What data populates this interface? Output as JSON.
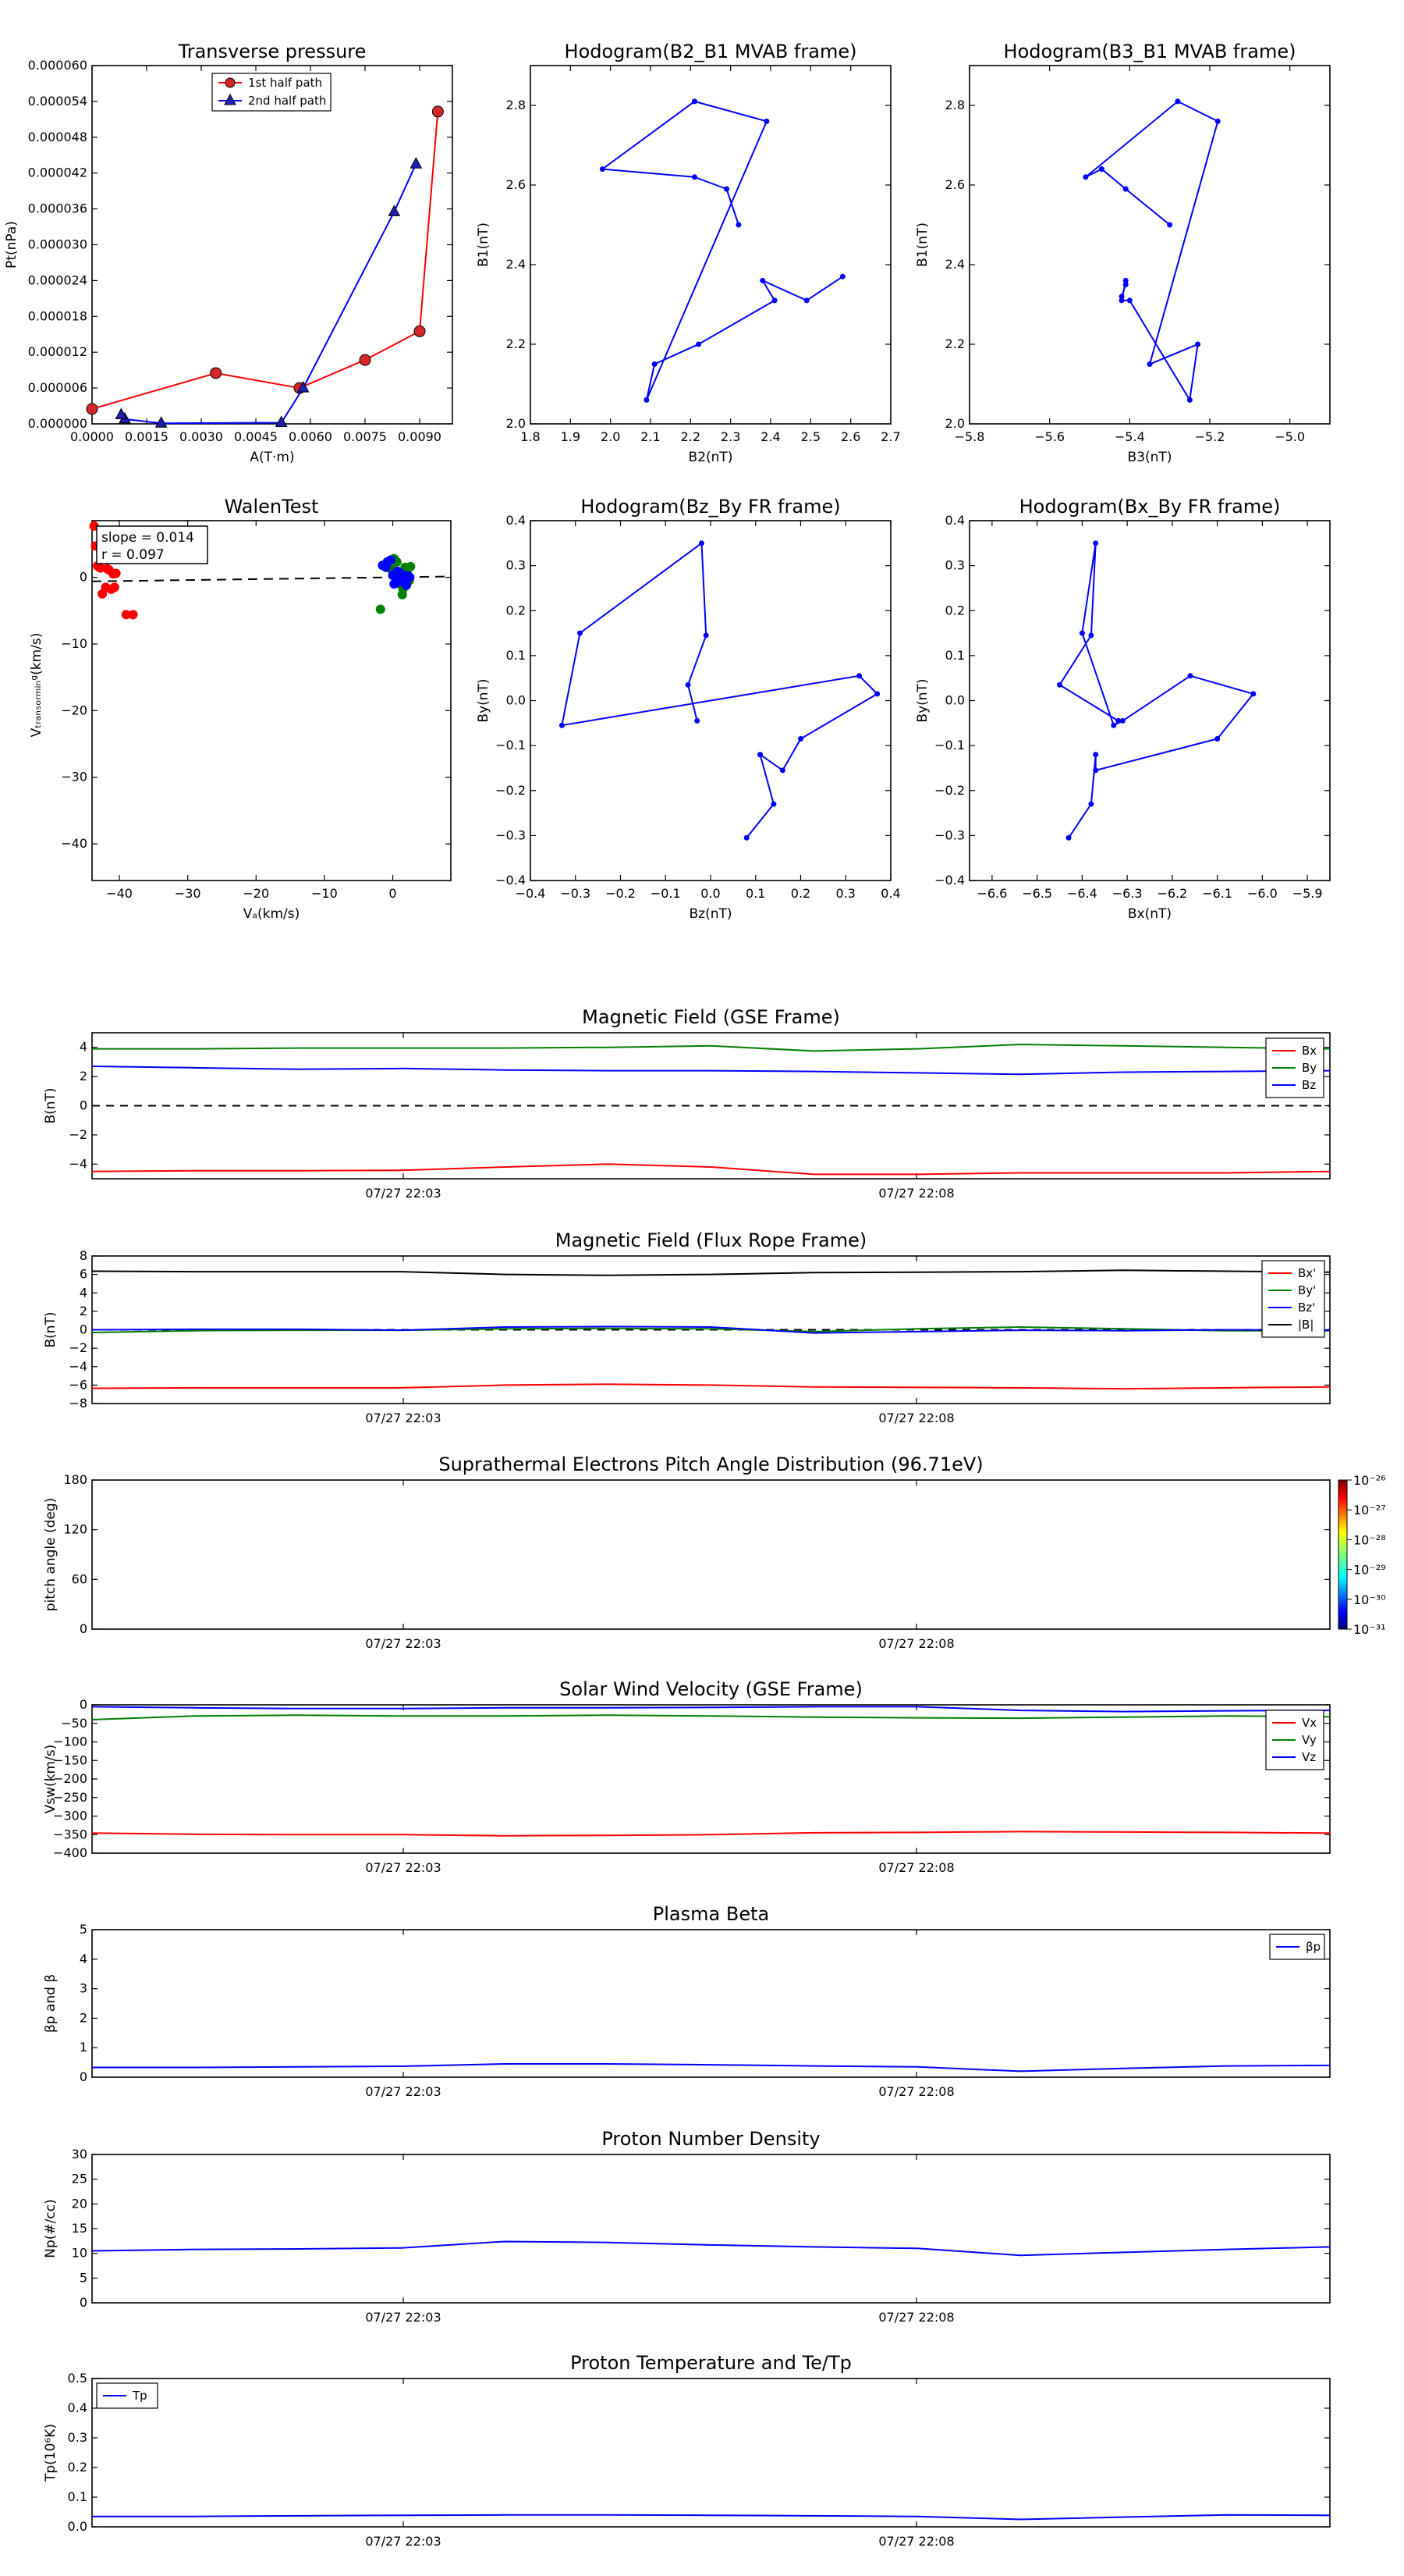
{
  "colors": {
    "red": "#ff0000",
    "green": "#008000",
    "blue": "#0000ff",
    "black": "#000000",
    "marker_red": "#d62728",
    "marker_blue": "#1f1fb4"
  },
  "panels": {
    "tp": {
      "title": "Transverse pressure",
      "xlabel": "A(T·m)",
      "ylabel": "Pt(nPa)",
      "legend": [
        "1st half path",
        "2nd half path"
      ]
    },
    "h1": {
      "title": "Hodogram(B2_B1 MVAB frame)",
      "xlabel": "B2(nT)",
      "ylabel": "B1(nT)"
    },
    "h2": {
      "title": "Hodogram(B3_B1 MVAB frame)",
      "xlabel": "B3(nT)",
      "ylabel": "B1(nT)"
    },
    "wt": {
      "title": "WalenTest",
      "xlabel": "Vₐ(km/s)",
      "ylabel": "Vₜᵣₐₙₛₒᵣₘᵢₙᵍ(km/s)",
      "slope_text": "slope = 0.014",
      "r_text": "r = 0.097"
    },
    "h3": {
      "title": "Hodogram(Bz_By FR frame)",
      "xlabel": "Bz(nT)",
      "ylabel": "By(nT)"
    },
    "h4": {
      "title": "Hodogram(Bx_By FR frame)",
      "xlabel": "Bx(nT)",
      "ylabel": "By(nT)"
    },
    "ts1": {
      "title": "Magnetic Field (GSE Frame)",
      "ylabel": "B(nT)",
      "legend": [
        "Bx",
        "By",
        "Bz"
      ]
    },
    "ts2": {
      "title": "Magnetic Field (Flux Rope Frame)",
      "ylabel": "B(nT)",
      "legend": [
        "Bx'",
        "By'",
        "Bz'",
        "|B|"
      ]
    },
    "ts3": {
      "title": "Suprathermal Electrons Pitch Angle Distribution (96.71eV)",
      "ylabel": "pitch angle (deg)",
      "colorbar_ticks": [
        "10⁻²⁶",
        "10⁻²⁷",
        "10⁻²⁸",
        "10⁻²⁹",
        "10⁻³⁰",
        "10⁻³¹"
      ]
    },
    "ts4": {
      "title": "Solar Wind Velocity (GSE Frame)",
      "ylabel": "Vsw(km/s)",
      "legend": [
        "Vx",
        "Vy",
        "Vz"
      ]
    },
    "ts5": {
      "title": "Plasma Beta",
      "ylabel": "βp and β",
      "legend": [
        "βp"
      ]
    },
    "ts6": {
      "title": "Proton Number Density",
      "ylabel": "Np(#/cc)"
    },
    "ts7": {
      "title": "Proton Temperature and Te/Tp",
      "ylabel": "Tp(10⁶K)",
      "legend": [
        "Tp"
      ]
    },
    "time_ticks": [
      "07/27 22:03",
      "07/27 22:08"
    ]
  },
  "chart_data": [
    {
      "id": "tp",
      "type": "line",
      "x_ticks": [
        "0.0000",
        "0.0015",
        "0.0030",
        "0.0045",
        "0.0060",
        "0.0075",
        "0.0090"
      ],
      "y_ticks": [
        "0.000000",
        "0.000006",
        "0.000012",
        "0.000018",
        "0.000024",
        "0.000030",
        "0.000036",
        "0.000042",
        "0.000048",
        "0.000054",
        "0.000060"
      ],
      "xlim": [
        0,
        0.0099
      ],
      "ylim": [
        0,
        6e-05
      ],
      "series": [
        {
          "name": "1st half path",
          "color": "#ff0000",
          "marker": "circle",
          "x": [
            0,
            0.0034,
            0.0057,
            0.0075,
            0.009,
            0.0095
          ],
          "y": [
            2.5e-06,
            8.5e-06,
            6e-06,
            1.07e-05,
            1.55e-05,
            5.23e-05
          ]
        },
        {
          "name": "2nd half path",
          "color": "#0000ff",
          "marker": "triangle",
          "x": [
            0.0089,
            0.0083,
            0.0058,
            0.0052,
            0.0019,
            0.0009,
            0.0008
          ],
          "y": [
            4.35e-05,
            3.55e-05,
            6e-06,
            2e-07,
            1e-07,
            8e-07,
            1.5e-06
          ]
        }
      ]
    },
    {
      "id": "h1",
      "type": "line",
      "x_ticks": [
        "1.8",
        "1.9",
        "2.0",
        "2.1",
        "2.2",
        "2.3",
        "2.4",
        "2.5",
        "2.6",
        "2.7"
      ],
      "y_ticks": [
        "2.0",
        "2.2",
        "2.4",
        "2.6",
        "2.8"
      ],
      "xlim": [
        1.8,
        2.7
      ],
      "ylim": [
        2.0,
        2.9
      ],
      "x": [
        2.32,
        2.29,
        2.21,
        1.98,
        2.21,
        2.39,
        2.09,
        2.11,
        2.22,
        2.41,
        2.38,
        2.49,
        2.58
      ],
      "y": [
        2.5,
        2.59,
        2.62,
        2.64,
        2.81,
        2.76,
        2.06,
        2.15,
        2.2,
        2.31,
        2.36,
        2.31,
        2.37
      ]
    },
    {
      "id": "h2",
      "type": "line",
      "x_ticks": [
        "−5.8",
        "−5.6",
        "−5.4",
        "−5.2",
        "−5.0"
      ],
      "y_ticks": [
        "2.0",
        "2.2",
        "2.4",
        "2.6",
        "2.8"
      ],
      "xlim": [
        -5.8,
        -4.9
      ],
      "ylim": [
        2.0,
        2.9
      ],
      "x": [
        -5.3,
        -5.41,
        -5.47,
        -5.51,
        -5.28,
        -5.18,
        -5.35,
        -5.23,
        -5.25,
        -5.4,
        -5.42,
        -5.41,
        -5.41,
        -5.42
      ],
      "y": [
        2.5,
        2.59,
        2.64,
        2.62,
        2.81,
        2.76,
        2.15,
        2.2,
        2.06,
        2.31,
        2.31,
        2.36,
        2.35,
        2.32
      ]
    },
    {
      "id": "wt",
      "type": "scatter",
      "x_ticks": [
        "−40",
        "−30",
        "−20",
        "−10",
        "0"
      ],
      "y_ticks": [
        "−40",
        "−30",
        "−20",
        "−10",
        "0"
      ],
      "xlim": [
        -44,
        8.5
      ],
      "ylim": [
        -45.5,
        8.5
      ],
      "series": [
        {
          "color": "#ff0000",
          "x": [
            -43.7,
            -43.5,
            -43.2,
            -42.8,
            -42.5,
            -42.0,
            -41.8,
            -41.5,
            -41.2,
            -40.9,
            -40.7,
            -40.5,
            -39.0,
            -38.0
          ],
          "y": [
            7.7,
            4.7,
            1.7,
            1.4,
            -2.5,
            -1.5,
            1.3,
            1.1,
            -1.8,
            0.5,
            -1.5,
            0.6,
            -5.6,
            -5.6
          ]
        },
        {
          "color": "#008000",
          "x": [
            -1.8,
            -0.5,
            0.2,
            0.6,
            1.2,
            1.4,
            1.8,
            2.2,
            2.6,
            -0.2,
            0.9,
            1.5,
            2.4
          ],
          "y": [
            -4.8,
            2.4,
            2.8,
            2.3,
            -0.3,
            -2.6,
            1.5,
            0.4,
            1.6,
            1.2,
            -0.9,
            -1.7,
            -0.5
          ]
        },
        {
          "color": "#0000ff",
          "x": [
            -1.5,
            -0.8,
            -0.3,
            0.0,
            0.3,
            0.5,
            0.8,
            1.0,
            1.3,
            1.6,
            2.0,
            2.5,
            -1.0,
            0.2,
            0.7,
            1.1,
            1.8,
            2.2
          ],
          "y": [
            1.8,
            2.3,
            2.6,
            0.3,
            0.5,
            -0.8,
            -0.2,
            0.7,
            -0.5,
            0.3,
            -1.2,
            0.0,
            1.5,
            -1.0,
            0.9,
            -0.6,
            -0.3,
            0.2
          ]
        }
      ],
      "fit": {
        "slope": 0.014,
        "intercept": 0.0,
        "style": "dashed"
      }
    },
    {
      "id": "h3",
      "type": "line",
      "x_ticks": [
        "−0.4",
        "−0.3",
        "−0.2",
        "−0.1",
        "0.0",
        "0.1",
        "0.2",
        "0.3",
        "0.4"
      ],
      "y_ticks": [
        "−0.4",
        "−0.3",
        "−0.2",
        "−0.1",
        "0.0",
        "0.1",
        "0.2",
        "0.3",
        "0.4"
      ],
      "xlim": [
        -0.4,
        0.4
      ],
      "ylim": [
        -0.4,
        0.4
      ],
      "x": [
        -0.03,
        -0.05,
        -0.01,
        -0.02,
        -0.29,
        -0.33,
        0.33,
        0.37,
        0.2,
        0.16,
        0.11,
        0.14,
        0.08
      ],
      "y": [
        -0.045,
        0.035,
        0.145,
        0.35,
        0.15,
        -0.055,
        0.055,
        0.015,
        -0.085,
        -0.155,
        -0.12,
        -0.23,
        -0.305
      ]
    },
    {
      "id": "h4",
      "type": "line",
      "x_ticks": [
        "−6.6",
        "−6.5",
        "−6.4",
        "−6.3",
        "−6.2",
        "−6.1",
        "−6.0",
        "−5.9"
      ],
      "y_ticks": [
        "−0.4",
        "−0.3",
        "−0.2",
        "−0.1",
        "0.0",
        "0.1",
        "0.2",
        "0.3",
        "0.4"
      ],
      "xlim": [
        -6.65,
        -5.85
      ],
      "ylim": [
        -0.4,
        0.4
      ],
      "x": [
        -6.32,
        -6.45,
        -6.38,
        -6.37,
        -6.4,
        -6.33,
        -6.31,
        -6.16,
        -6.02,
        -6.1,
        -6.37,
        -6.37,
        -6.38,
        -6.43
      ],
      "y": [
        -0.045,
        0.035,
        0.145,
        0.35,
        0.15,
        -0.055,
        -0.045,
        0.055,
        0.015,
        -0.085,
        -0.155,
        -0.12,
        -0.23,
        -0.305
      ]
    },
    {
      "id": "ts1",
      "type": "line",
      "y_ticks": [
        "−4",
        "−2",
        "0",
        "2",
        "4"
      ],
      "ylim": [
        -5,
        5
      ],
      "hline": 0,
      "t": [
        0,
        1,
        2,
        3,
        4,
        5,
        6,
        7,
        8,
        9,
        10,
        11,
        12
      ],
      "series": [
        {
          "name": "Bx",
          "color": "#ff0000",
          "values": [
            -4.5,
            -4.45,
            -4.45,
            -4.42,
            -4.2,
            -4.0,
            -4.2,
            -4.7,
            -4.7,
            -4.6,
            -4.6,
            -4.6,
            -4.5
          ]
        },
        {
          "name": "By",
          "color": "#008000",
          "values": [
            3.9,
            3.9,
            3.95,
            3.95,
            3.95,
            4.0,
            4.1,
            3.75,
            3.9,
            4.2,
            4.1,
            4.0,
            3.9
          ]
        },
        {
          "name": "Bz",
          "color": "#0000ff",
          "values": [
            2.7,
            2.6,
            2.5,
            2.55,
            2.45,
            2.4,
            2.4,
            2.35,
            2.25,
            2.15,
            2.3,
            2.35,
            2.4
          ]
        }
      ]
    },
    {
      "id": "ts2",
      "type": "line",
      "y_ticks": [
        "−8",
        "−6",
        "−4",
        "−2",
        "0",
        "2",
        "4",
        "6",
        "8"
      ],
      "ylim": [
        -8,
        8
      ],
      "hline": 0,
      "t": [
        0,
        1,
        2,
        3,
        4,
        5,
        6,
        7,
        8,
        9,
        10,
        11,
        12
      ],
      "series": [
        {
          "name": "Bx'",
          "color": "#ff0000",
          "values": [
            -6.35,
            -6.3,
            -6.3,
            -6.3,
            -6.0,
            -5.9,
            -6.0,
            -6.2,
            -6.25,
            -6.3,
            -6.4,
            -6.3,
            -6.2
          ]
        },
        {
          "name": "By'",
          "color": "#008000",
          "values": [
            -0.3,
            -0.1,
            -0.05,
            -0.05,
            0.1,
            0.15,
            0.1,
            -0.2,
            0.1,
            0.3,
            0.1,
            -0.1,
            -0.1
          ]
        },
        {
          "name": "Bz'",
          "color": "#0000ff",
          "values": [
            0.0,
            0.05,
            0.05,
            -0.05,
            0.3,
            0.35,
            0.3,
            -0.35,
            -0.2,
            -0.05,
            -0.1,
            0.0,
            -0.05
          ]
        },
        {
          "name": "|B|",
          "color": "#000000",
          "values": [
            6.35,
            6.3,
            6.3,
            6.3,
            6.0,
            5.9,
            6.0,
            6.2,
            6.25,
            6.3,
            6.45,
            6.35,
            6.25
          ]
        }
      ]
    },
    {
      "id": "ts3",
      "type": "heatmap",
      "y_ticks": [
        "0",
        "60",
        "120",
        "180"
      ],
      "ylim": [
        0,
        180
      ],
      "values": []
    },
    {
      "id": "ts4",
      "type": "line",
      "y_ticks": [
        "−400",
        "−350",
        "−300",
        "−250",
        "−200",
        "−150",
        "−100",
        "−50",
        "0"
      ],
      "ylim": [
        -400,
        0
      ],
      "t": [
        0,
        1,
        2,
        3,
        4,
        5,
        6,
        7,
        8,
        9,
        10,
        11,
        12
      ],
      "series": [
        {
          "name": "Vx",
          "color": "#ff0000",
          "values": [
            -346,
            -349,
            -350,
            -350,
            -353,
            -352,
            -350,
            -345,
            -344,
            -342,
            -343,
            -344,
            -346
          ]
        },
        {
          "name": "Vy",
          "color": "#008000",
          "values": [
            -40,
            -30,
            -28,
            -30,
            -30,
            -28,
            -30,
            -33,
            -35,
            -36,
            -33,
            -30,
            -32
          ]
        },
        {
          "name": "Vz",
          "color": "#0000ff",
          "values": [
            -5,
            -8,
            -10,
            -10,
            -8,
            -8,
            -7,
            -5,
            -5,
            -15,
            -18,
            -16,
            -15
          ]
        }
      ]
    },
    {
      "id": "ts5",
      "type": "line",
      "y_ticks": [
        "0",
        "1",
        "2",
        "3",
        "4",
        "5"
      ],
      "ylim": [
        0,
        5
      ],
      "t": [
        0,
        1,
        2,
        3,
        4,
        5,
        6,
        7,
        8,
        9,
        10,
        11,
        12
      ],
      "series": [
        {
          "name": "βp",
          "color": "#0000ff",
          "values": [
            0.33,
            0.33,
            0.35,
            0.37,
            0.45,
            0.45,
            0.42,
            0.38,
            0.35,
            0.2,
            0.3,
            0.38,
            0.4
          ]
        }
      ]
    },
    {
      "id": "ts6",
      "type": "line",
      "y_ticks": [
        "0",
        "5",
        "10",
        "15",
        "20",
        "25",
        "30"
      ],
      "ylim": [
        0,
        30
      ],
      "t": [
        0,
        1,
        2,
        3,
        4,
        5,
        6,
        7,
        8,
        9,
        10,
        11,
        12
      ],
      "series": [
        {
          "name": "Np",
          "color": "#0000ff",
          "values": [
            10.5,
            10.8,
            10.9,
            11.1,
            12.4,
            12.2,
            11.7,
            11.3,
            11.0,
            9.6,
            10.2,
            10.8,
            11.3
          ]
        }
      ]
    },
    {
      "id": "ts7",
      "type": "line",
      "y_ticks": [
        "0.0",
        "0.1",
        "0.2",
        "0.3",
        "0.4",
        "0.5"
      ],
      "ylim": [
        0,
        0.5
      ],
      "t": [
        0,
        1,
        2,
        3,
        4,
        5,
        6,
        7,
        8,
        9,
        10,
        11,
        12
      ],
      "series": [
        {
          "name": "Tp",
          "color": "#0000ff",
          "values": [
            0.035,
            0.035,
            0.037,
            0.039,
            0.04,
            0.04,
            0.039,
            0.037,
            0.035,
            0.025,
            0.033,
            0.04,
            0.039
          ]
        }
      ]
    }
  ]
}
